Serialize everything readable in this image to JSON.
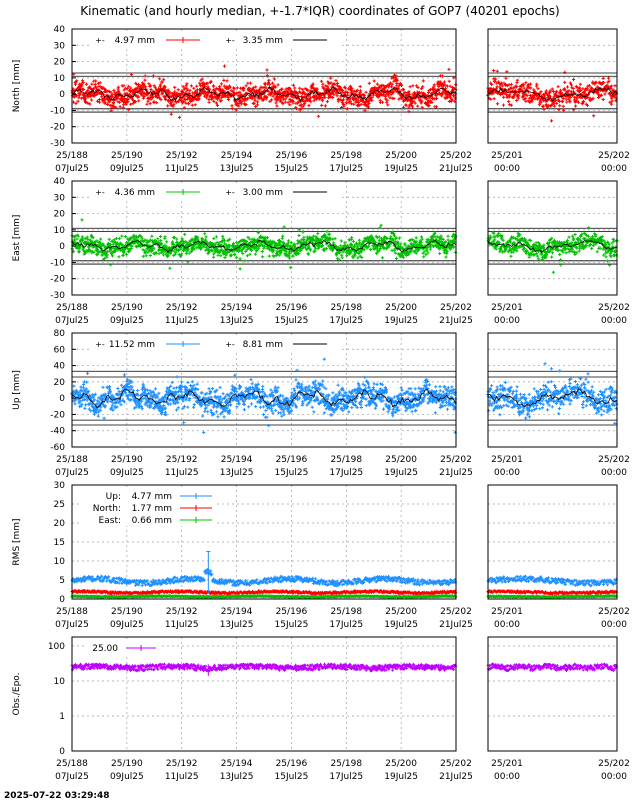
{
  "title": "Kinematic (and hourly median, +-1.7*IQR) coordinates of GOP7 (40201 epochs)",
  "timestamp": "2025-07-22 03:29:48",
  "x_ticks_main": [
    {
      "doy": "25/188",
      "date": "07Jul25"
    },
    {
      "doy": "25/190",
      "date": "09Jul25"
    },
    {
      "doy": "25/192",
      "date": "11Jul25"
    },
    {
      "doy": "25/194",
      "date": "13Jul25"
    },
    {
      "doy": "25/196",
      "date": "15Jul25"
    },
    {
      "doy": "25/198",
      "date": "17Jul25"
    },
    {
      "doy": "25/200",
      "date": "19Jul25"
    },
    {
      "doy": "25/202",
      "date": "21Jul25"
    }
  ],
  "x_ticks_zoom": [
    {
      "doy": "25/201",
      "date": "00:00"
    },
    {
      "doy": "25/202",
      "date": "00:00"
    }
  ],
  "chart_data": [
    {
      "type": "scatter",
      "ylabel": "North [mm]",
      "ylim": [
        -30,
        40
      ],
      "yticks": [
        40,
        30,
        20,
        10,
        0,
        -10,
        -20,
        -30
      ],
      "iqr_lines": [
        13,
        11,
        -9,
        -11
      ],
      "color": "#ff0000",
      "series": [
        {
          "name": "4.97 mm",
          "style": "points"
        },
        {
          "name": "3.35 mm",
          "style": "median"
        }
      ],
      "spread": 4.97,
      "median_amp": 3.35
    },
    {
      "type": "scatter",
      "ylabel": "East [mm]",
      "ylim": [
        -30,
        40
      ],
      "yticks": [
        40,
        30,
        20,
        10,
        0,
        -10,
        -20,
        -30
      ],
      "iqr_lines": [
        11,
        9,
        -9,
        -11
      ],
      "color": "#00c000",
      "series": [
        {
          "name": "4.36 mm",
          "style": "points"
        },
        {
          "name": "3.00 mm",
          "style": "median"
        }
      ],
      "spread": 4.36,
      "median_amp": 3.0
    },
    {
      "type": "scatter",
      "ylabel": "Up [mm]",
      "ylim": [
        -60,
        80
      ],
      "yticks": [
        80,
        60,
        40,
        20,
        0,
        -20,
        -40,
        -60
      ],
      "iqr_lines": [
        33,
        26,
        -27,
        -33
      ],
      "color": "#1e90ff",
      "series": [
        {
          "name": "11.52 mm",
          "style": "points"
        },
        {
          "name": "8.81 mm",
          "style": "median"
        }
      ],
      "spread": 11.52,
      "median_amp": 8.81
    },
    {
      "type": "line",
      "ylabel": "RMS [mm]",
      "ylim": [
        0,
        30
      ],
      "yticks": [
        30,
        25,
        20,
        15,
        10,
        5,
        0
      ],
      "series": [
        {
          "name": "Up:",
          "value": "4.77 mm",
          "level": 4.77,
          "color": "#1e90ff"
        },
        {
          "name": "North:",
          "value": "1.77 mm",
          "level": 1.77,
          "color": "#ff0000"
        },
        {
          "name": "East:",
          "value": "0.66 mm",
          "level": 0.66,
          "color": "#00c000"
        }
      ]
    },
    {
      "type": "line",
      "ylabel": "Obs./Epo.",
      "scale": "log",
      "yticks": [
        "100",
        "10",
        "1",
        "0"
      ],
      "color": "#c000ff",
      "series": [
        {
          "name": "25.00",
          "level": 25.0
        }
      ]
    }
  ]
}
